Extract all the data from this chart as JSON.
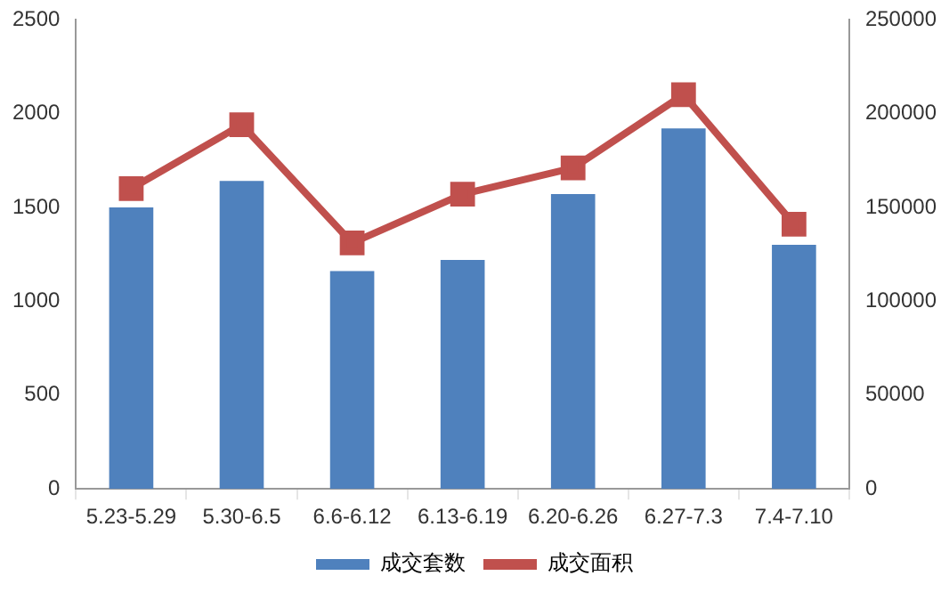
{
  "chart_data": {
    "type": "bar",
    "categories": [
      "5.23-5.29",
      "5.30-6.5",
      "6.6-6.12",
      "6.13-6.19",
      "6.20-6.26",
      "6.27-7.3",
      "7.4-7.10"
    ],
    "series": [
      {
        "name": "成交套数",
        "color": "#4f81bd",
        "values": [
          1500,
          1640,
          1160,
          1220,
          1570,
          1920,
          1300
        ]
      },
      {
        "name": "成交面积",
        "type": "line",
        "axis": "y2",
        "color": "#c0504d",
        "marker": "square",
        "values": [
          160000,
          194000,
          131000,
          157000,
          171000,
          210000,
          141000
        ]
      }
    ],
    "ylim": [
      0,
      2500
    ],
    "yticks": [
      0,
      500,
      1000,
      1500,
      2000,
      2500
    ],
    "y2lim": [
      0,
      250000
    ],
    "y2ticks": [
      0,
      50000,
      100000,
      150000,
      200000,
      250000
    ],
    "grid": false,
    "legend": "bottom"
  }
}
